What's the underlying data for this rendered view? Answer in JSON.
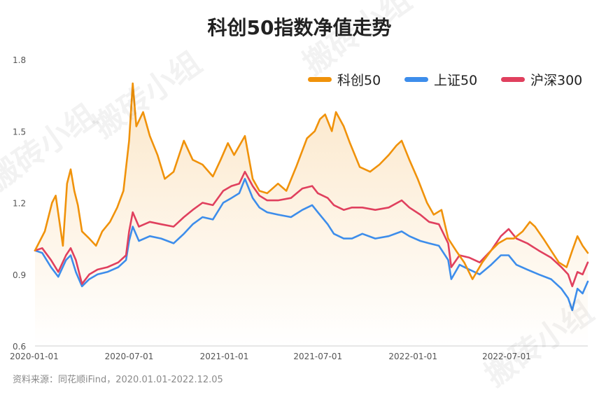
{
  "title": "科创50指数净值走势",
  "source": "资料来源：同花顺iFind，2020.01.01-2022.12.05",
  "watermark": "搬砖小组",
  "colors": {
    "kc50": "#F0920A",
    "sz50": "#3D8DEB",
    "hs300": "#E0405E"
  },
  "chart_data": {
    "type": "line",
    "title": "科创50指数净值走势",
    "xlabel": "",
    "ylabel": "",
    "ylim": [
      0.6,
      1.8
    ],
    "yticks": [
      "1.8",
      "1.5",
      "1.2",
      "0.9",
      "0.6"
    ],
    "xticks": [
      "2020-01-01",
      "2020-07-01",
      "2021-01-01",
      "2021-07-01",
      "2022-01-01",
      "2022-07-01"
    ],
    "xrange": [
      "2020-01-01",
      "2022-12-05"
    ],
    "grid": false,
    "legend": "top-right",
    "series": [
      {
        "name": "科创50",
        "key": "kc50",
        "points": [
          [
            "2020-01-01",
            1.0
          ],
          [
            "2020-01-20",
            1.08
          ],
          [
            "2020-02-03",
            1.2
          ],
          [
            "2020-02-10",
            1.23
          ],
          [
            "2020-02-24",
            1.02
          ],
          [
            "2020-03-03",
            1.28
          ],
          [
            "2020-03-10",
            1.34
          ],
          [
            "2020-03-17",
            1.25
          ],
          [
            "2020-03-24",
            1.19
          ],
          [
            "2020-04-01",
            1.08
          ],
          [
            "2020-04-15",
            1.05
          ],
          [
            "2020-04-28",
            1.02
          ],
          [
            "2020-05-10",
            1.08
          ],
          [
            "2020-05-25",
            1.12
          ],
          [
            "2020-06-08",
            1.18
          ],
          [
            "2020-06-20",
            1.25
          ],
          [
            "2020-07-01",
            1.46
          ],
          [
            "2020-07-08",
            1.7
          ],
          [
            "2020-07-15",
            1.52
          ],
          [
            "2020-07-28",
            1.58
          ],
          [
            "2020-08-10",
            1.48
          ],
          [
            "2020-08-25",
            1.4
          ],
          [
            "2020-09-08",
            1.3
          ],
          [
            "2020-09-25",
            1.33
          ],
          [
            "2020-10-15",
            1.46
          ],
          [
            "2020-11-01",
            1.38
          ],
          [
            "2020-11-20",
            1.36
          ],
          [
            "2020-12-10",
            1.31
          ],
          [
            "2020-12-25",
            1.38
          ],
          [
            "2021-01-08",
            1.45
          ],
          [
            "2021-01-20",
            1.4
          ],
          [
            "2021-02-10",
            1.48
          ],
          [
            "2021-02-25",
            1.3
          ],
          [
            "2021-03-10",
            1.25
          ],
          [
            "2021-03-25",
            1.24
          ],
          [
            "2021-04-15",
            1.28
          ],
          [
            "2021-05-01",
            1.25
          ],
          [
            "2021-05-20",
            1.35
          ],
          [
            "2021-06-10",
            1.47
          ],
          [
            "2021-06-25",
            1.5
          ],
          [
            "2021-07-05",
            1.55
          ],
          [
            "2021-07-15",
            1.57
          ],
          [
            "2021-07-28",
            1.5
          ],
          [
            "2021-08-05",
            1.58
          ],
          [
            "2021-08-20",
            1.52
          ],
          [
            "2021-09-01",
            1.45
          ],
          [
            "2021-09-20",
            1.35
          ],
          [
            "2021-10-10",
            1.33
          ],
          [
            "2021-10-28",
            1.36
          ],
          [
            "2021-11-15",
            1.4
          ],
          [
            "2021-11-30",
            1.44
          ],
          [
            "2021-12-10",
            1.46
          ],
          [
            "2021-12-25",
            1.38
          ],
          [
            "2022-01-10",
            1.3
          ],
          [
            "2022-01-28",
            1.2
          ],
          [
            "2022-02-10",
            1.15
          ],
          [
            "2022-02-25",
            1.17
          ],
          [
            "2022-03-10",
            1.05
          ],
          [
            "2022-03-25",
            1.0
          ],
          [
            "2022-04-10",
            0.95
          ],
          [
            "2022-04-26",
            0.88
          ],
          [
            "2022-05-15",
            0.95
          ],
          [
            "2022-06-01",
            1.0
          ],
          [
            "2022-06-15",
            1.03
          ],
          [
            "2022-07-01",
            1.05
          ],
          [
            "2022-07-15",
            1.05
          ],
          [
            "2022-08-01",
            1.08
          ],
          [
            "2022-08-15",
            1.12
          ],
          [
            "2022-08-25",
            1.1
          ],
          [
            "2022-09-10",
            1.05
          ],
          [
            "2022-09-25",
            1.0
          ],
          [
            "2022-10-10",
            0.95
          ],
          [
            "2022-10-25",
            0.93
          ],
          [
            "2022-11-05",
            1.0
          ],
          [
            "2022-11-15",
            1.06
          ],
          [
            "2022-11-25",
            1.02
          ],
          [
            "2022-12-05",
            0.99
          ]
        ]
      },
      {
        "name": "上证50",
        "key": "sz50",
        "points": [
          [
            "2020-01-01",
            1.0
          ],
          [
            "2020-01-15",
            0.99
          ],
          [
            "2020-02-01",
            0.93
          ],
          [
            "2020-02-15",
            0.89
          ],
          [
            "2020-03-01",
            0.96
          ],
          [
            "2020-03-10",
            0.98
          ],
          [
            "2020-03-20",
            0.91
          ],
          [
            "2020-04-01",
            0.85
          ],
          [
            "2020-04-15",
            0.88
          ],
          [
            "2020-05-01",
            0.9
          ],
          [
            "2020-05-20",
            0.91
          ],
          [
            "2020-06-10",
            0.93
          ],
          [
            "2020-06-25",
            0.96
          ],
          [
            "2020-07-01",
            1.04
          ],
          [
            "2020-07-08",
            1.1
          ],
          [
            "2020-07-20",
            1.04
          ],
          [
            "2020-08-10",
            1.06
          ],
          [
            "2020-09-01",
            1.05
          ],
          [
            "2020-09-25",
            1.03
          ],
          [
            "2020-10-15",
            1.07
          ],
          [
            "2020-11-01",
            1.11
          ],
          [
            "2020-11-20",
            1.14
          ],
          [
            "2020-12-10",
            1.13
          ],
          [
            "2020-12-30",
            1.2
          ],
          [
            "2021-01-15",
            1.22
          ],
          [
            "2021-01-30",
            1.24
          ],
          [
            "2021-02-10",
            1.3
          ],
          [
            "2021-02-25",
            1.22
          ],
          [
            "2021-03-10",
            1.18
          ],
          [
            "2021-03-25",
            1.16
          ],
          [
            "2021-04-15",
            1.15
          ],
          [
            "2021-05-10",
            1.14
          ],
          [
            "2021-06-01",
            1.17
          ],
          [
            "2021-06-20",
            1.19
          ],
          [
            "2021-07-01",
            1.16
          ],
          [
            "2021-07-20",
            1.11
          ],
          [
            "2021-08-01",
            1.07
          ],
          [
            "2021-08-20",
            1.05
          ],
          [
            "2021-09-05",
            1.05
          ],
          [
            "2021-09-25",
            1.07
          ],
          [
            "2021-10-20",
            1.05
          ],
          [
            "2021-11-15",
            1.06
          ],
          [
            "2021-12-10",
            1.08
          ],
          [
            "2021-12-25",
            1.06
          ],
          [
            "2022-01-15",
            1.04
          ],
          [
            "2022-02-01",
            1.03
          ],
          [
            "2022-02-20",
            1.02
          ],
          [
            "2022-03-10",
            0.96
          ],
          [
            "2022-03-16",
            0.88
          ],
          [
            "2022-04-01",
            0.94
          ],
          [
            "2022-04-20",
            0.92
          ],
          [
            "2022-05-10",
            0.9
          ],
          [
            "2022-06-01",
            0.94
          ],
          [
            "2022-06-20",
            0.98
          ],
          [
            "2022-07-05",
            0.98
          ],
          [
            "2022-07-20",
            0.94
          ],
          [
            "2022-08-10",
            0.92
          ],
          [
            "2022-09-01",
            0.9
          ],
          [
            "2022-09-25",
            0.88
          ],
          [
            "2022-10-15",
            0.84
          ],
          [
            "2022-10-28",
            0.8
          ],
          [
            "2022-11-05",
            0.75
          ],
          [
            "2022-11-15",
            0.84
          ],
          [
            "2022-11-25",
            0.82
          ],
          [
            "2022-12-05",
            0.87
          ]
        ]
      },
      {
        "name": "沪深300",
        "key": "hs300",
        "points": [
          [
            "2020-01-01",
            1.0
          ],
          [
            "2020-01-15",
            1.01
          ],
          [
            "2020-02-01",
            0.96
          ],
          [
            "2020-02-15",
            0.91
          ],
          [
            "2020-03-01",
            0.98
          ],
          [
            "2020-03-10",
            1.01
          ],
          [
            "2020-03-20",
            0.96
          ],
          [
            "2020-04-01",
            0.86
          ],
          [
            "2020-04-15",
            0.9
          ],
          [
            "2020-05-01",
            0.92
          ],
          [
            "2020-05-20",
            0.93
          ],
          [
            "2020-06-10",
            0.95
          ],
          [
            "2020-06-25",
            0.98
          ],
          [
            "2020-07-01",
            1.08
          ],
          [
            "2020-07-08",
            1.16
          ],
          [
            "2020-07-20",
            1.1
          ],
          [
            "2020-08-10",
            1.12
          ],
          [
            "2020-09-01",
            1.11
          ],
          [
            "2020-09-25",
            1.1
          ],
          [
            "2020-10-15",
            1.14
          ],
          [
            "2020-11-01",
            1.17
          ],
          [
            "2020-11-20",
            1.2
          ],
          [
            "2020-12-10",
            1.19
          ],
          [
            "2020-12-30",
            1.25
          ],
          [
            "2021-01-15",
            1.27
          ],
          [
            "2021-01-30",
            1.28
          ],
          [
            "2021-02-10",
            1.33
          ],
          [
            "2021-02-25",
            1.27
          ],
          [
            "2021-03-10",
            1.23
          ],
          [
            "2021-03-25",
            1.21
          ],
          [
            "2021-04-15",
            1.21
          ],
          [
            "2021-05-10",
            1.22
          ],
          [
            "2021-06-01",
            1.26
          ],
          [
            "2021-06-20",
            1.27
          ],
          [
            "2021-07-01",
            1.24
          ],
          [
            "2021-07-20",
            1.22
          ],
          [
            "2021-08-01",
            1.19
          ],
          [
            "2021-08-20",
            1.17
          ],
          [
            "2021-09-05",
            1.18
          ],
          [
            "2021-09-25",
            1.18
          ],
          [
            "2021-10-20",
            1.17
          ],
          [
            "2021-11-15",
            1.18
          ],
          [
            "2021-12-10",
            1.21
          ],
          [
            "2021-12-25",
            1.18
          ],
          [
            "2022-01-15",
            1.15
          ],
          [
            "2022-02-01",
            1.12
          ],
          [
            "2022-02-20",
            1.11
          ],
          [
            "2022-03-10",
            1.03
          ],
          [
            "2022-03-16",
            0.93
          ],
          [
            "2022-04-01",
            0.98
          ],
          [
            "2022-04-20",
            0.97
          ],
          [
            "2022-05-10",
            0.95
          ],
          [
            "2022-06-01",
            1.0
          ],
          [
            "2022-06-20",
            1.06
          ],
          [
            "2022-07-05",
            1.09
          ],
          [
            "2022-07-20",
            1.05
          ],
          [
            "2022-08-10",
            1.03
          ],
          [
            "2022-09-01",
            1.0
          ],
          [
            "2022-09-25",
            0.97
          ],
          [
            "2022-10-15",
            0.93
          ],
          [
            "2022-10-28",
            0.9
          ],
          [
            "2022-11-05",
            0.85
          ],
          [
            "2022-11-15",
            0.91
          ],
          [
            "2022-11-25",
            0.9
          ],
          [
            "2022-12-05",
            0.95
          ]
        ]
      }
    ]
  }
}
